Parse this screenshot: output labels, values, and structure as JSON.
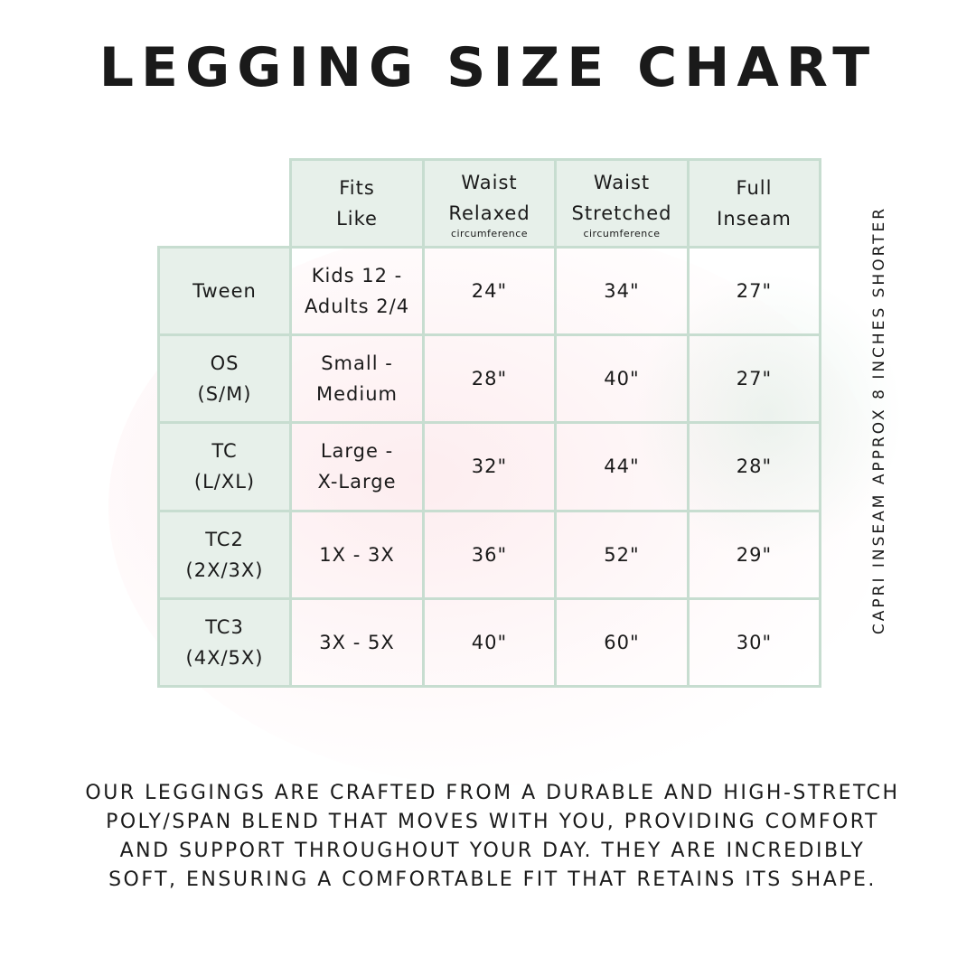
{
  "title": "LEGGING SIZE CHART",
  "side_note": "CAPRI INSEAM APPROX 8 INCHES SHORTER",
  "table": {
    "headers": [
      {
        "line1": "Fits",
        "line2": "Like",
        "sub": ""
      },
      {
        "line1": "Waist",
        "line2": "Relaxed",
        "sub": "circumference"
      },
      {
        "line1": "Waist",
        "line2": "Stretched",
        "sub": "circumference"
      },
      {
        "line1": "Full",
        "line2": "Inseam",
        "sub": ""
      }
    ],
    "rows": [
      {
        "size1": "Tween",
        "size2": "",
        "fit1": "Kids 12 -",
        "fit2": "Adults 2/4",
        "relaxed": "24\"",
        "stretched": "34\"",
        "inseam": "27\""
      },
      {
        "size1": "OS",
        "size2": "(S/M)",
        "fit1": "Small -",
        "fit2": "Medium",
        "relaxed": "28\"",
        "stretched": "40\"",
        "inseam": "27\""
      },
      {
        "size1": "TC",
        "size2": "(L/XL)",
        "fit1": "Large -",
        "fit2": "X-Large",
        "relaxed": "32\"",
        "stretched": "44\"",
        "inseam": "28\""
      },
      {
        "size1": "TC2",
        "size2": "(2X/3X)",
        "fit1": "1X - 3X",
        "fit2": "",
        "relaxed": "36\"",
        "stretched": "52\"",
        "inseam": "29\""
      },
      {
        "size1": "TC3",
        "size2": "(4X/5X)",
        "fit1": "3X - 5X",
        "fit2": "",
        "relaxed": "40\"",
        "stretched": "60\"",
        "inseam": "30\""
      }
    ]
  },
  "description": [
    "Our leggings are crafted from a durable and high-stretch",
    "poly/span blend that moves with you, providing comfort",
    "and support throughout your day. They are incredibly",
    "soft, ensuring a comfortable fit that retains its shape."
  ],
  "colors": {
    "header_fill": "#e7f0ea",
    "border": "#c7ddd0",
    "text": "#1a1a1a"
  }
}
